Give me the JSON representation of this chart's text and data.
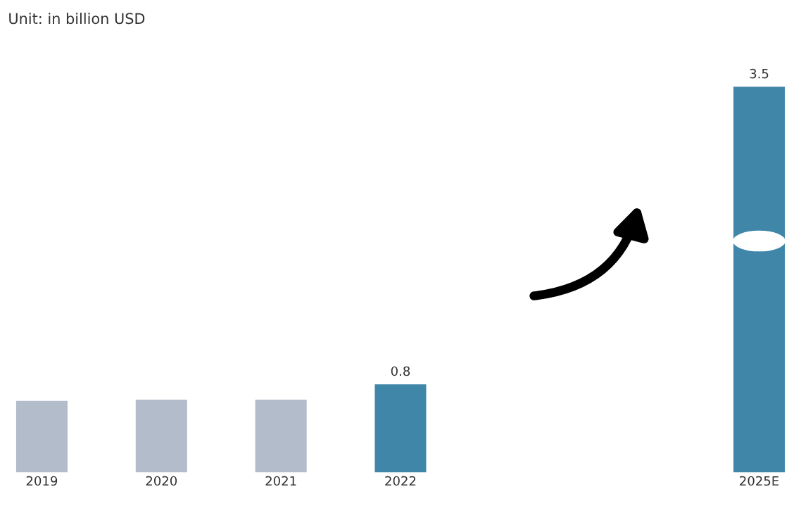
{
  "chart_data": {
    "type": "bar",
    "title": "Unit: in billion USD",
    "categories": [
      "2019",
      "2020",
      "2021",
      "2022",
      null,
      null,
      "2025E"
    ],
    "values": [
      0.65,
      0.66,
      0.66,
      0.8,
      null,
      null,
      3.5
    ],
    "colors": [
      "#b3bccb",
      "#b3bccb",
      "#b3bccb",
      "#3f86a8",
      "#3f86a8",
      "#3f86a8",
      "#3f86a8"
    ],
    "value_labels": [
      null,
      null,
      null,
      "0.8",
      null,
      null,
      "3.5"
    ],
    "grid": false,
    "legend": false
  }
}
